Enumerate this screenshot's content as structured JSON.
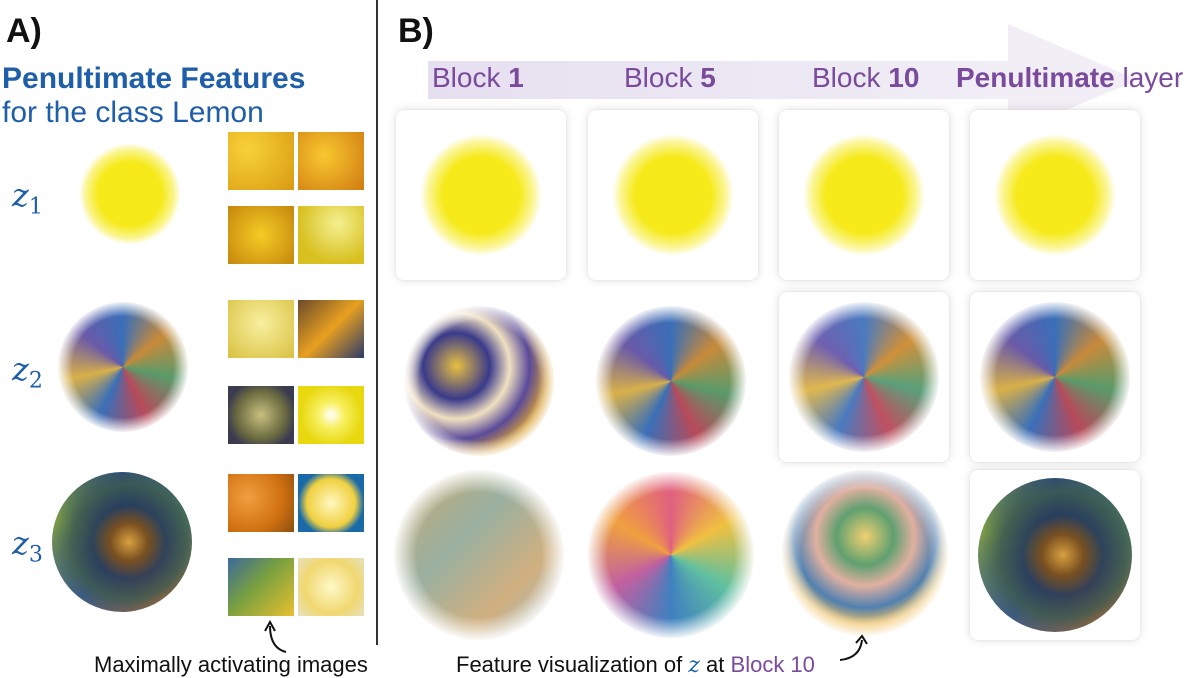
{
  "panel_a": {
    "letter": "A)",
    "title_bold": "Penultimate Features",
    "title_rest": "for the class Lemon",
    "rows": [
      {
        "z": "z",
        "sub": "1"
      },
      {
        "z": "z",
        "sub": "2"
      },
      {
        "z": "z",
        "sub": "3"
      }
    ],
    "caption": "Maximally activating images"
  },
  "panel_b": {
    "letter": "B)",
    "blocks": [
      {
        "word": "Block ",
        "bold": "1",
        "tail": ""
      },
      {
        "word": "Block ",
        "bold": "5",
        "tail": ""
      },
      {
        "word": "Block ",
        "bold": "10",
        "tail": ""
      },
      {
        "word": "",
        "bold": "Penultimate",
        "tail": " layer"
      }
    ],
    "caption_prefix": "Feature visualization of ",
    "caption_var": "z",
    "caption_mid": " at ",
    "caption_block": "Block 10"
  },
  "colors": {
    "feature_blue": "#1f5ea8",
    "block_purple": "#7a4a9c",
    "arrow_band": "#ece6f2",
    "lemon_yellow": "#f6ea1a"
  }
}
